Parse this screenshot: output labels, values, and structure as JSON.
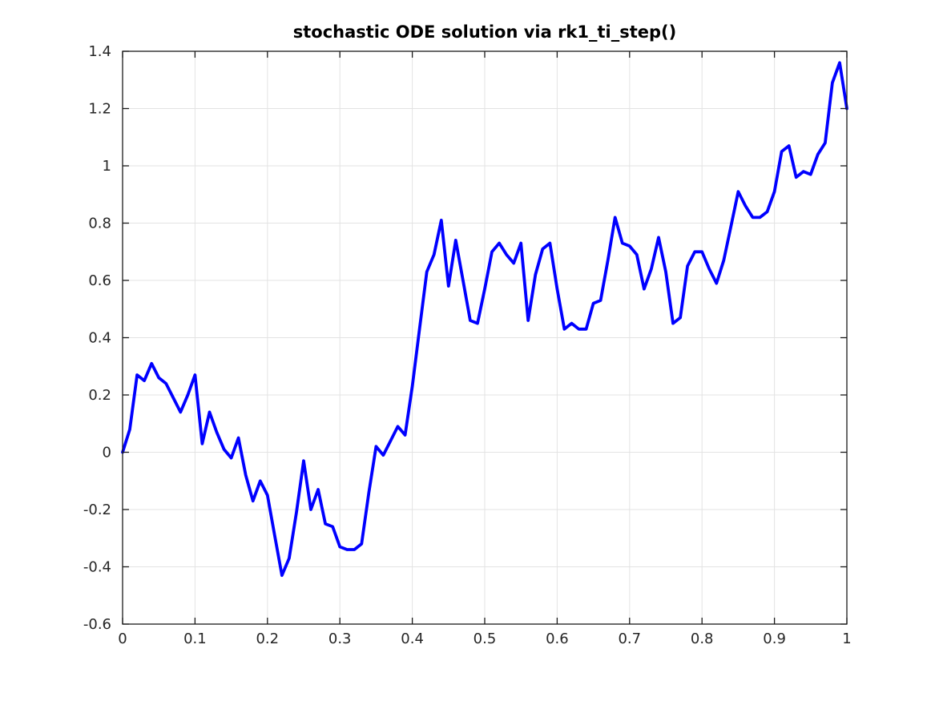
{
  "window": {
    "background": "#ffffff"
  },
  "chart_data": {
    "type": "line",
    "title": "stochastic ODE solution via rk1_ti_step()",
    "xlabel": "",
    "ylabel": "",
    "xlim": [
      0,
      1
    ],
    "ylim": [
      -0.6,
      1.4
    ],
    "grid": true,
    "legend": null,
    "x_ticks": {
      "values": [
        0,
        0.1,
        0.2,
        0.3,
        0.4,
        0.5,
        0.6,
        0.7,
        0.8,
        0.9,
        1
      ],
      "labels": [
        "0",
        "0.1",
        "0.2",
        "0.3",
        "0.4",
        "0.5",
        "0.6",
        "0.7",
        "0.8",
        "0.9",
        "1"
      ]
    },
    "y_ticks": {
      "values": [
        -0.6,
        -0.4,
        -0.2,
        0,
        0.2,
        0.4,
        0.6,
        0.8,
        1,
        1.2,
        1.4
      ],
      "labels": [
        "-0.6",
        "-0.4",
        "-0.2",
        "0",
        "0.2",
        "0.4",
        "0.6",
        "0.8",
        "1",
        "1.2",
        "1.4"
      ]
    },
    "series": [
      {
        "name": "stochastic ODE solution",
        "color": "#0000ff",
        "line_width": 3.8,
        "x": [
          0,
          0.01,
          0.02,
          0.03,
          0.04,
          0.05,
          0.06,
          0.07,
          0.08,
          0.09,
          0.1,
          0.11,
          0.12,
          0.13,
          0.14,
          0.15,
          0.16,
          0.17,
          0.18,
          0.19,
          0.2,
          0.21,
          0.22,
          0.23,
          0.24,
          0.25,
          0.26,
          0.27,
          0.28,
          0.29,
          0.3,
          0.31,
          0.32,
          0.33,
          0.34,
          0.35,
          0.36,
          0.37,
          0.38,
          0.39,
          0.4,
          0.41,
          0.42,
          0.43,
          0.44,
          0.45,
          0.46,
          0.47,
          0.48,
          0.49,
          0.5,
          0.51,
          0.52,
          0.53,
          0.54,
          0.55,
          0.56,
          0.57,
          0.58,
          0.59,
          0.6,
          0.61,
          0.62,
          0.63,
          0.64,
          0.65,
          0.66,
          0.67,
          0.68,
          0.69,
          0.7,
          0.71,
          0.72,
          0.73,
          0.74,
          0.75,
          0.76,
          0.77,
          0.78,
          0.79,
          0.8,
          0.81,
          0.82,
          0.83,
          0.84,
          0.85,
          0.86,
          0.87,
          0.88,
          0.89,
          0.9,
          0.91,
          0.92,
          0.93,
          0.94,
          0.95,
          0.96,
          0.97,
          0.98,
          0.99,
          1
        ],
        "y": [
          0,
          0.08,
          0.27,
          0.25,
          0.31,
          0.26,
          0.24,
          0.19,
          0.14,
          0.2,
          0.27,
          0.03,
          0.14,
          0.07,
          0.01,
          -0.02,
          0.05,
          -0.08,
          -0.17,
          -0.1,
          -0.15,
          -0.29,
          -0.43,
          -0.37,
          -0.21,
          -0.03,
          -0.2,
          -0.13,
          -0.25,
          -0.26,
          -0.33,
          -0.34,
          -0.34,
          -0.32,
          -0.14,
          0.02,
          -0.01,
          0.04,
          0.09,
          0.06,
          0.23,
          0.43,
          0.63,
          0.69,
          0.81,
          0.58,
          0.74,
          0.6,
          0.46,
          0.45,
          0.57,
          0.7,
          0.73,
          0.69,
          0.66,
          0.73,
          0.46,
          0.62,
          0.71,
          0.73,
          0.57,
          0.43,
          0.45,
          0.43,
          0.43,
          0.52,
          0.53,
          0.67,
          0.82,
          0.73,
          0.72,
          0.69,
          0.57,
          0.64,
          0.75,
          0.63,
          0.45,
          0.47,
          0.65,
          0.7,
          0.7,
          0.64,
          0.59,
          0.67,
          0.79,
          0.91,
          0.86,
          0.82,
          0.82,
          0.84,
          0.91,
          1.05,
          1.07,
          0.96,
          0.98,
          0.97,
          1.04,
          1.08,
          1.29,
          1.36,
          1.2
        ]
      }
    ],
    "styles": {
      "grid_color": "#e3e3e3",
      "axis_color": "#1a1a1a",
      "tick_label_color": "#262626",
      "title_color": "#000000",
      "tick_label_size": 18,
      "tick_length": 8
    }
  }
}
